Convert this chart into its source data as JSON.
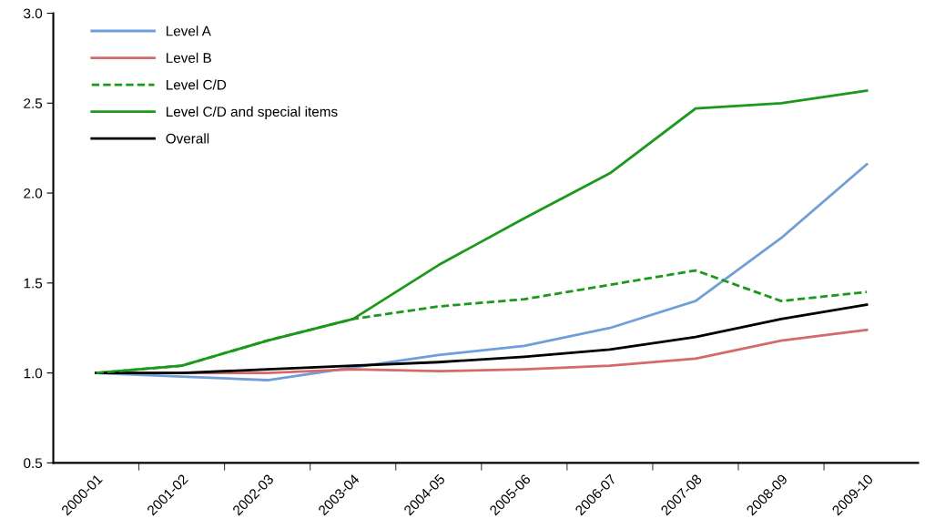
{
  "chart_data": {
    "type": "line",
    "categories": [
      "2000-01",
      "2001-02",
      "2002-03",
      "2003-04",
      "2004-05",
      "2005-06",
      "2006-07",
      "2007-08",
      "2008-09",
      "2009-10"
    ],
    "series": [
      {
        "name": "Level A",
        "color": "#6f9fd8",
        "values": [
          1.0,
          0.98,
          0.96,
          1.03,
          1.1,
          1.15,
          1.25,
          1.4,
          1.75,
          2.16
        ]
      },
      {
        "name": "Level B",
        "color": "#d46a6a",
        "values": [
          1.0,
          1.0,
          1.0,
          1.02,
          1.01,
          1.02,
          1.04,
          1.08,
          1.18,
          1.24
        ]
      },
      {
        "name": "Level C/D",
        "color": "#1a9a1a",
        "line_style": "dashed",
        "values": [
          1.0,
          1.04,
          1.18,
          1.3,
          1.37,
          1.41,
          1.49,
          1.57,
          1.4,
          1.45
        ]
      },
      {
        "name": "Level C/D and special items",
        "color": "#1a9a1a",
        "values": [
          1.0,
          1.04,
          1.18,
          1.3,
          1.6,
          1.86,
          2.11,
          2.47,
          2.5,
          2.57
        ]
      },
      {
        "name": "Overall",
        "color": "#000000",
        "values": [
          1.0,
          1.0,
          1.02,
          1.04,
          1.06,
          1.09,
          1.13,
          1.2,
          1.3,
          1.38
        ]
      }
    ],
    "ylim": [
      0.5,
      3.0
    ],
    "yticks": [
      {
        "value": 0.5,
        "label": "0.5"
      },
      {
        "value": 1.0,
        "label": "1.0"
      },
      {
        "value": 1.5,
        "label": "1.5"
      },
      {
        "value": 2.0,
        "label": "2.0"
      },
      {
        "value": 2.5,
        "label": "2.5"
      },
      {
        "value": 3.0,
        "label": "3.0"
      }
    ],
    "grid": false,
    "legend": "top left",
    "marker": "none",
    "line_style": "solid"
  }
}
